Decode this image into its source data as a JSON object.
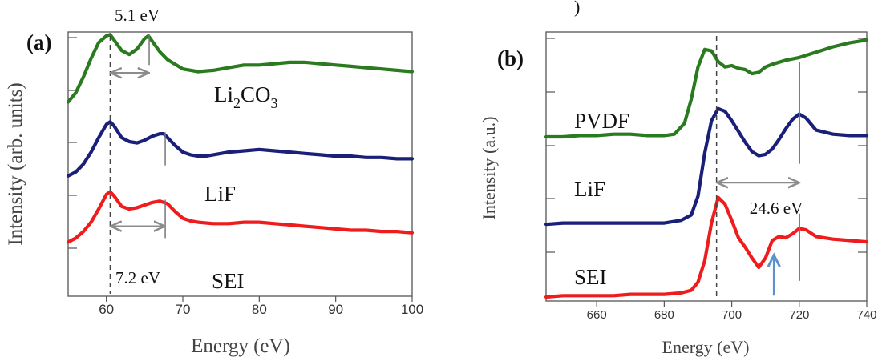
{
  "chart_data": [
    {
      "type": "line",
      "panel_label": "(a)",
      "xlabel": "Energy (eV)",
      "ylabel": "Intensity (arb. units)",
      "xlim": [
        55,
        100
      ],
      "x_ticks": [
        "60",
        "70",
        "80",
        "90",
        "100"
      ],
      "x_tick_values": [
        60,
        70,
        80,
        90,
        100
      ],
      "grid": false,
      "legend": "none",
      "series": [
        {
          "name_parts": [
            "Li",
            "2",
            "CO",
            "3"
          ],
          "color": "#2a7a1f",
          "x": [
            55,
            56,
            57,
            58,
            59,
            60,
            60.5,
            61,
            62,
            63,
            64,
            65,
            65.5,
            66,
            67,
            68,
            70,
            72,
            74,
            76,
            78,
            80,
            82,
            84,
            86,
            88,
            90,
            92,
            94,
            96,
            98,
            100
          ],
          "y": [
            0.735,
            0.77,
            0.83,
            0.9,
            0.96,
            0.985,
            0.99,
            0.97,
            0.93,
            0.915,
            0.935,
            0.975,
            0.985,
            0.965,
            0.925,
            0.895,
            0.86,
            0.85,
            0.855,
            0.865,
            0.875,
            0.875,
            0.88,
            0.885,
            0.885,
            0.88,
            0.875,
            0.87,
            0.865,
            0.86,
            0.855,
            0.85
          ]
        },
        {
          "name": "LiF",
          "color": "#1a1f78",
          "x": [
            55,
            56,
            57,
            58,
            59,
            60,
            60.5,
            61,
            62,
            63,
            64,
            65,
            66,
            67,
            67.5,
            68,
            69,
            70,
            71,
            72,
            73,
            74,
            76,
            78,
            80,
            82,
            84,
            86,
            88,
            90,
            92,
            94,
            96,
            98,
            100
          ],
          "y": [
            0.455,
            0.47,
            0.5,
            0.545,
            0.6,
            0.65,
            0.66,
            0.645,
            0.6,
            0.585,
            0.58,
            0.59,
            0.605,
            0.615,
            0.615,
            0.6,
            0.57,
            0.545,
            0.535,
            0.53,
            0.53,
            0.535,
            0.545,
            0.55,
            0.555,
            0.55,
            0.545,
            0.54,
            0.535,
            0.53,
            0.53,
            0.525,
            0.525,
            0.52,
            0.52
          ]
        },
        {
          "name": "SEI",
          "color": "#ee1c1c",
          "x": [
            55,
            56,
            57,
            58,
            59,
            60,
            60.5,
            61,
            62,
            63,
            64,
            65,
            66,
            67,
            68,
            69,
            70,
            71,
            72,
            74,
            76,
            78,
            80,
            82,
            84,
            86,
            88,
            90,
            92,
            94,
            96,
            98,
            100
          ],
          "y": [
            0.205,
            0.22,
            0.245,
            0.28,
            0.33,
            0.385,
            0.395,
            0.38,
            0.34,
            0.33,
            0.335,
            0.345,
            0.355,
            0.36,
            0.35,
            0.32,
            0.295,
            0.285,
            0.28,
            0.275,
            0.275,
            0.28,
            0.28,
            0.275,
            0.27,
            0.265,
            0.26,
            0.255,
            0.25,
            0.25,
            0.245,
            0.245,
            0.24
          ]
        }
      ],
      "annotations": [
        {
          "text": "5.1 eV",
          "from": 60.5,
          "to": 65.6,
          "y": 0.845
        },
        {
          "text": "7.2 eV",
          "from": 60.5,
          "to": 67.7,
          "y": 0.265
        }
      ],
      "dashed_line_x": 60.5,
      "marker_lines": [
        {
          "x": 65.6,
          "y_from": 0.875,
          "y_to": 0.99
        },
        {
          "x": 67.7,
          "y_from": 0.495,
          "y_to": 0.62
        },
        {
          "x": 67.7,
          "y_from": 0.22,
          "y_to": 0.365
        }
      ]
    },
    {
      "type": "line",
      "panel_label": "(b)",
      "xlabel": "Energy (eV)",
      "ylabel": "Intensity (a.u.)",
      "xlim": [
        645,
        740
      ],
      "x_ticks": [
        "660",
        "680",
        "700",
        "720",
        "740"
      ],
      "x_tick_values": [
        660,
        680,
        700,
        720,
        740
      ],
      "grid": false,
      "legend": "none",
      "series": [
        {
          "name": "PVDF",
          "color": "#2a7a1f",
          "x": [
            645,
            650,
            655,
            660,
            665,
            670,
            675,
            680,
            683,
            686,
            688,
            690,
            692,
            694,
            696,
            698,
            700,
            702,
            704,
            706,
            708,
            710,
            712,
            716,
            720,
            725,
            730,
            735,
            740
          ],
          "y": [
            0.61,
            0.61,
            0.615,
            0.615,
            0.62,
            0.62,
            0.615,
            0.615,
            0.62,
            0.66,
            0.75,
            0.87,
            0.935,
            0.93,
            0.89,
            0.87,
            0.875,
            0.865,
            0.86,
            0.845,
            0.85,
            0.87,
            0.88,
            0.895,
            0.905,
            0.925,
            0.945,
            0.96,
            0.97
          ]
        },
        {
          "name": "LiF",
          "color": "#1a1f78",
          "x": [
            645,
            650,
            655,
            660,
            665,
            670,
            675,
            680,
            685,
            688,
            690,
            692,
            694,
            696,
            698,
            700,
            702,
            704,
            706,
            708,
            710,
            712,
            714,
            716,
            718,
            720,
            722,
            725,
            730,
            735,
            740
          ],
          "y": [
            0.285,
            0.29,
            0.29,
            0.29,
            0.29,
            0.29,
            0.29,
            0.29,
            0.3,
            0.32,
            0.39,
            0.55,
            0.67,
            0.715,
            0.705,
            0.67,
            0.63,
            0.59,
            0.555,
            0.54,
            0.545,
            0.565,
            0.6,
            0.64,
            0.675,
            0.695,
            0.68,
            0.635,
            0.62,
            0.615,
            0.615
          ]
        },
        {
          "name": "SEI",
          "color": "#ee1c1c",
          "x": [
            645,
            650,
            655,
            660,
            665,
            670,
            675,
            680,
            685,
            688,
            690,
            692,
            694,
            696,
            698,
            700,
            702,
            704,
            706,
            708,
            710,
            712,
            714,
            716,
            718,
            720,
            722,
            725,
            730,
            735,
            740
          ],
          "y": [
            0.015,
            0.02,
            0.02,
            0.02,
            0.02,
            0.025,
            0.025,
            0.025,
            0.03,
            0.04,
            0.07,
            0.15,
            0.29,
            0.385,
            0.36,
            0.3,
            0.235,
            0.2,
            0.16,
            0.125,
            0.16,
            0.225,
            0.24,
            0.235,
            0.25,
            0.27,
            0.265,
            0.24,
            0.23,
            0.225,
            0.22
          ]
        }
      ],
      "annotations": [
        {
          "text": "24.6 eV",
          "from": 695.5,
          "to": 720.1,
          "y": 0.44
        }
      ],
      "dashed_line_x": 695.5,
      "marker_lines": [
        {
          "x": 720.1,
          "y_from": 0.51,
          "y_to": 0.89
        },
        {
          "x": 720.1,
          "y_from": 0.075,
          "y_to": 0.325
        }
      ],
      "arrow": {
        "x": 712.5,
        "y_from": 0.02,
        "y_to": 0.16,
        "color": "#5b93c9"
      }
    }
  ],
  "figure": {
    "partial_top_text": ")"
  }
}
